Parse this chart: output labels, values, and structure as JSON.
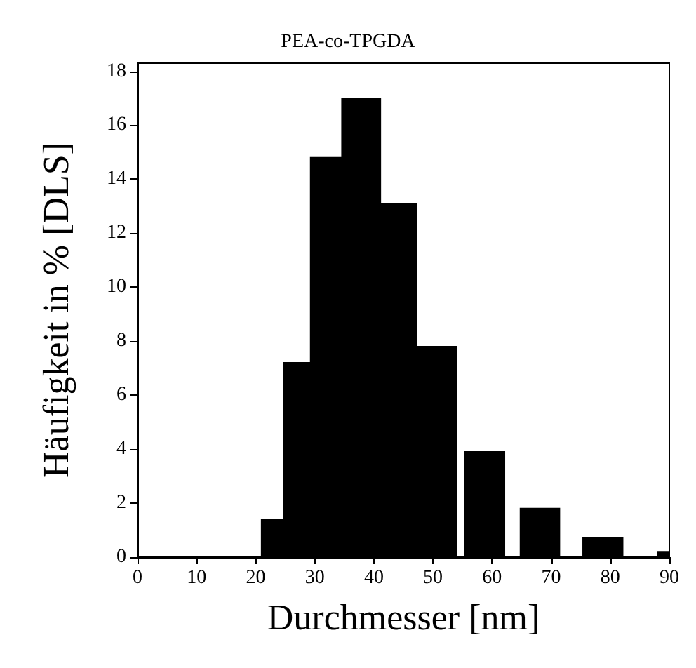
{
  "chart_data": {
    "type": "histogram",
    "title": "PEA-co-TPGDA",
    "xlabel": "Durchmesser [nm]",
    "ylabel": "Häufigkeit in % [DLS]",
    "bins": [
      21,
      24.7,
      29.3,
      34.6,
      41.1,
      47.2,
      54,
      55.4,
      62.1,
      64.8,
      71.4,
      75.4,
      82.1,
      88,
      90
    ],
    "values": [
      1.4,
      7.2,
      14.8,
      17,
      13.1,
      7.8,
      0,
      3.9,
      0,
      1.8,
      0,
      0.7,
      0,
      0.2
    ],
    "color": "#000000",
    "xlim": [
      0,
      90
    ],
    "xticks": [
      0,
      10,
      20,
      30,
      40,
      50,
      60,
      70,
      80,
      90
    ],
    "ylim": [
      0,
      18.3
    ],
    "yticks": [
      0,
      2,
      4,
      6,
      8,
      10,
      12,
      14,
      16,
      18
    ],
    "grid": false
  }
}
